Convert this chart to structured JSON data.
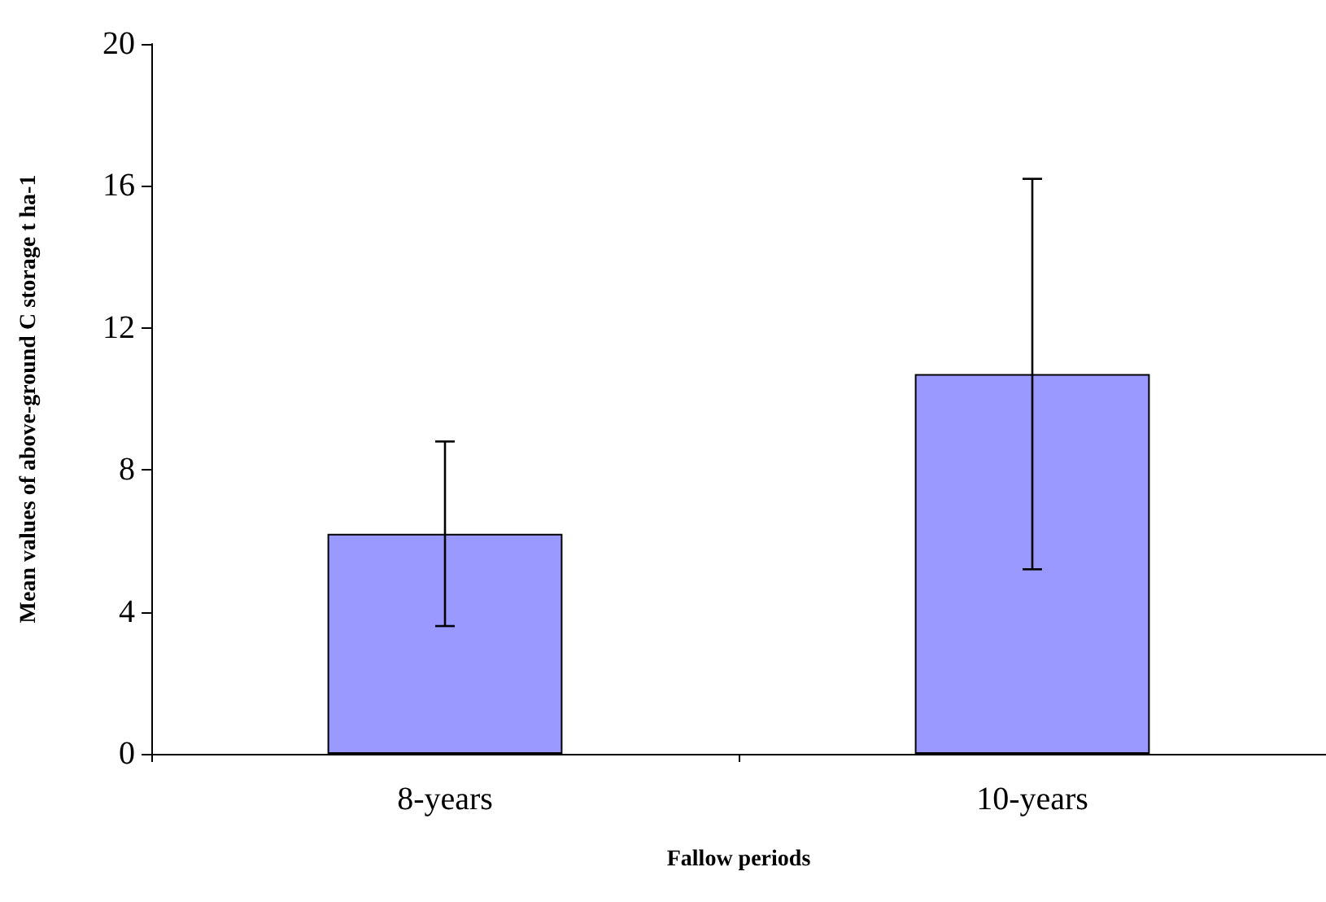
{
  "chart_data": {
    "type": "bar",
    "xlabel": "Fallow periods",
    "ylabel": "Mean values of above-ground C storage t ha-1",
    "categories": [
      "8-years",
      "10-years"
    ],
    "series": [
      {
        "color": "#9999ff",
        "values": [
          6.2,
          10.7
        ],
        "errors": [
          2.6,
          5.5
        ]
      }
    ],
    "ylim": [
      0,
      20
    ],
    "yticks": [
      0,
      4,
      8,
      12,
      16,
      20
    ],
    "grid": false
  }
}
